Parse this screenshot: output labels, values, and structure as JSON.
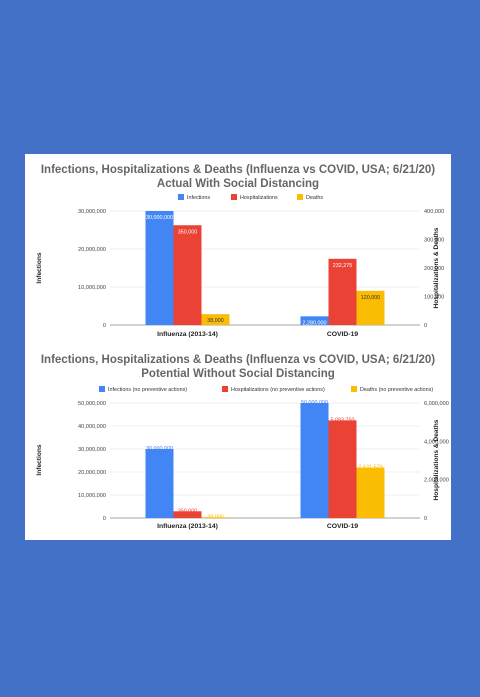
{
  "chart_data": [
    {
      "type": "bar",
      "title": "Infections, Hospitalizations & Deaths (Influenza vs COVID, USA; 6/21/20)",
      "subtitle": "Actual With Social Distancing",
      "categories": [
        "Influenza (2013-14)",
        "COVID-19"
      ],
      "ylabel": "Infections",
      "ylabel_right": "Hospitalizations & Deaths",
      "ylim": [
        0,
        30000000
      ],
      "ylim_right": [
        0,
        400000
      ],
      "yticks": [
        "0",
        "10,000,000",
        "20,000,000",
        "30,000,000"
      ],
      "yticks_right": [
        "0",
        "100,000",
        "200,000",
        "300,000",
        "400,000"
      ],
      "legend_position": "top",
      "grid": true,
      "series": [
        {
          "name": "Infections",
          "axis": "left",
          "color": "#4285f4",
          "values": [
            30000000,
            2280000
          ],
          "labels": [
            "30,000,000",
            "2,280,000"
          ],
          "label_color": "#ffffff",
          "label_inside": true
        },
        {
          "name": "Hospitalizations",
          "axis": "right",
          "color": "#ea4335",
          "values": [
            350000,
            232275
          ],
          "labels": [
            "350,000",
            "232,275"
          ],
          "label_color": "#ffffff",
          "label_inside": true
        },
        {
          "name": "Deaths",
          "axis": "right",
          "color": "#fbbc04",
          "values": [
            38000,
            120000
          ],
          "labels": [
            "38,000",
            "120,000"
          ],
          "label_color": "#333333",
          "label_inside": true
        }
      ]
    },
    {
      "type": "bar",
      "title": "Infections, Hospitalizations & Deaths (Influenza vs COVID, USA; 6/21/20)",
      "subtitle": "Potential Without Social Distancing",
      "categories": [
        "Influenza (2013-14)",
        "COVID-19"
      ],
      "ylabel": "Infections",
      "ylabel_right": "Hospitalizations & Deaths",
      "ylim": [
        0,
        50000000
      ],
      "ylim_right": [
        0,
        6000000
      ],
      "yticks": [
        "0",
        "10,000,000",
        "20,000,000",
        "30,000,000",
        "40,000,000",
        "50,000,000"
      ],
      "yticks_right": [
        "0",
        "2,000,000",
        "4,000,000",
        "6,000,000"
      ],
      "legend_position": "top",
      "grid": true,
      "series": [
        {
          "name": "Infections (no preventive actions)",
          "axis": "left",
          "color": "#4285f4",
          "values": [
            30000000,
            50000000
          ],
          "labels": [
            "30,000,000",
            "50,000,000"
          ],
          "label_color": "#4285f4",
          "label_inside": false
        },
        {
          "name": "Hospitalizations (no preventive actions)",
          "axis": "right",
          "color": "#ea4335",
          "values": [
            350000,
            5093750
          ],
          "labels": [
            "350,000",
            "5,093,750"
          ],
          "label_color": "#ea4335",
          "label_inside": false
        },
        {
          "name": "Deaths (no preventive actions)",
          "axis": "right",
          "color": "#fbbc04",
          "values": [
            38000,
            2631579
          ],
          "labels": [
            "38,000",
            "2,631,579"
          ],
          "label_color": "#fbbc04",
          "label_inside": false
        }
      ]
    }
  ]
}
